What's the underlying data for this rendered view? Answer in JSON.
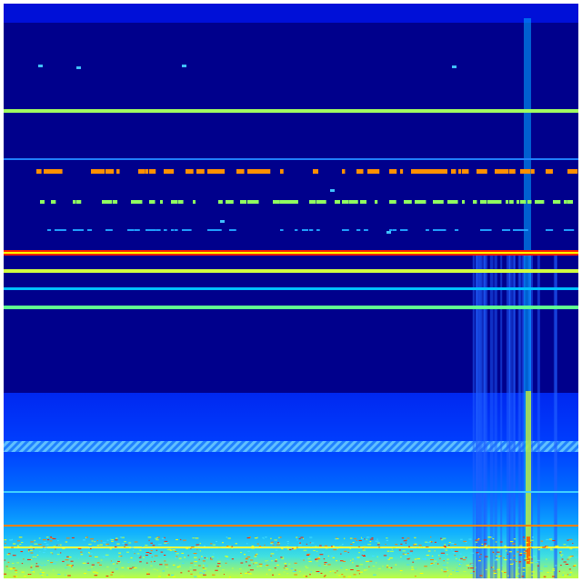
{
  "image": {
    "kind": "spectrogram",
    "colormap": "jet",
    "colors": {
      "background_low": "#00008c",
      "top_band": "#0010d8",
      "lower_region": "#0030ff",
      "cyan": "#00e0ff",
      "green": "#80ff80",
      "yellow": "#ffff00",
      "orange": "#ff9000",
      "red": "#e00000"
    }
  }
}
